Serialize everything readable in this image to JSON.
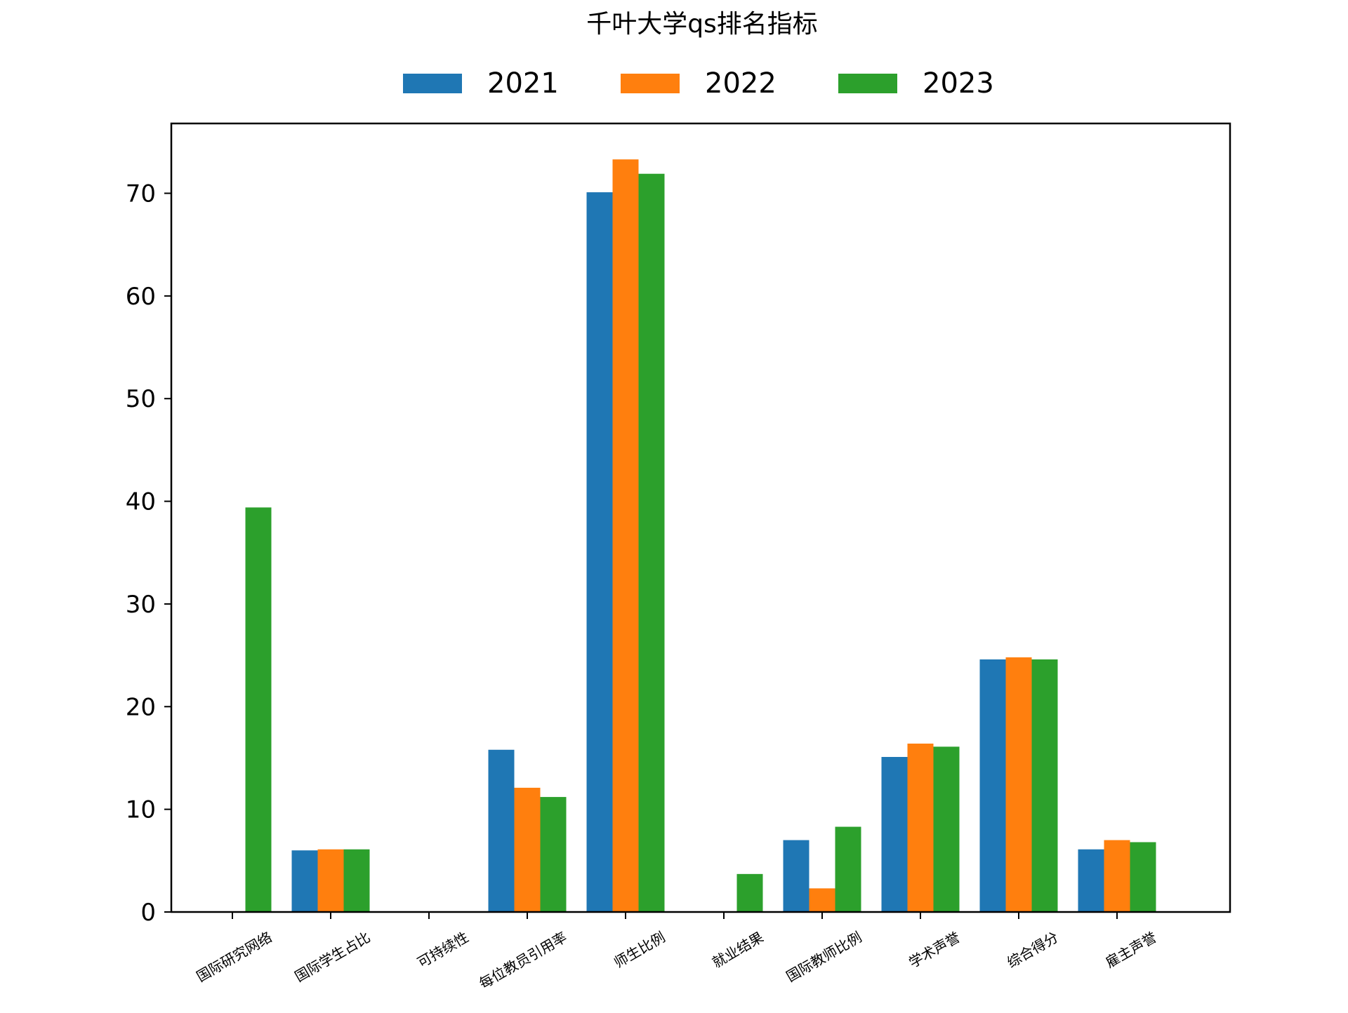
{
  "chart_data": {
    "type": "bar",
    "title": "千叶大学qs排名指标",
    "xlabel": "",
    "ylabel": "",
    "categories": [
      "国际研究网络",
      "国际学生占比",
      "可持续性",
      "每位教员引用率",
      "师生比例",
      "就业结果",
      "国际教师比例",
      "学术声誉",
      "综合得分",
      "雇主声誉"
    ],
    "series": [
      {
        "name": "2021",
        "color": "#1f77b4",
        "values": [
          0,
          6.0,
          0,
          15.8,
          70.1,
          0,
          7.0,
          15.1,
          24.6,
          6.1
        ]
      },
      {
        "name": "2022",
        "color": "#ff7f0e",
        "values": [
          0,
          6.1,
          0,
          12.1,
          73.3,
          0,
          2.3,
          16.4,
          24.8,
          7.0
        ]
      },
      {
        "name": "2023",
        "color": "#2ca02c",
        "values": [
          39.4,
          6.1,
          0,
          11.2,
          71.9,
          3.7,
          8.3,
          16.1,
          24.6,
          6.8
        ]
      }
    ],
    "ylim": [
      0,
      76.8
    ],
    "yticks": [
      0,
      10,
      20,
      30,
      40,
      50,
      60,
      70
    ],
    "grid": false,
    "legend_position": "top-center"
  }
}
